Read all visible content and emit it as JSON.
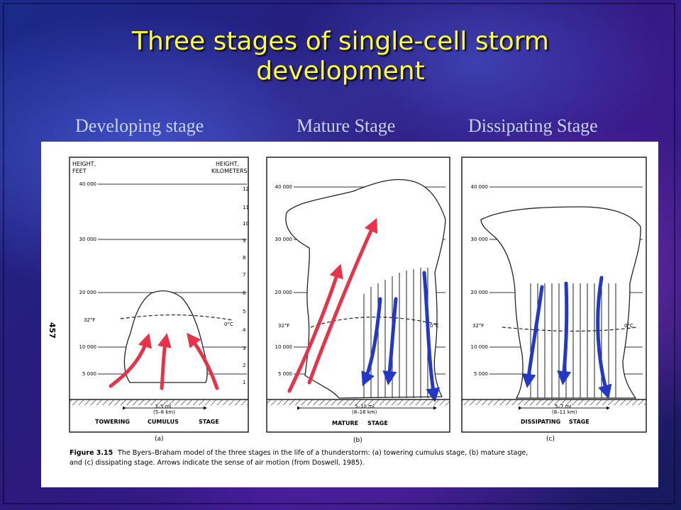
{
  "slide": {
    "title_line1": "Three stages of single-cell storm",
    "title_line2": "development",
    "stage_labels": [
      "Developing stage",
      "Mature Stage",
      "Dissipating Stage"
    ]
  },
  "figure": {
    "page_number": "457",
    "caption_label": "Figure 3.15",
    "caption_line1": "The Byers–Braham model of the three stages in the life of a thunderstorm: (a) towering cumulus stage, (b) mature stage,",
    "caption_line2": "and (c) dissipating stage. Arrows indicate the sense of air motion (from Doswell, 1985).",
    "axis_left_title": [
      "HEIGHT,",
      "FEET"
    ],
    "axis_right_title": [
      "HEIGHT,",
      "KILOMETERS"
    ],
    "feet_ticks": [
      "40 000",
      "30 000",
      "20 000",
      "10 000",
      "5 000"
    ],
    "km_ticks": [
      "12",
      "11",
      "10",
      "9",
      "8",
      "7",
      "6",
      "5",
      "4",
      "3",
      "2",
      "1"
    ],
    "freezing_left": "32°F",
    "freezing_right": "0°C",
    "panels": [
      {
        "id": "a",
        "letter": "(a)",
        "width_mi": "3–5 mi",
        "width_km": "(5–8 km)",
        "stage_words": [
          "TOWERING",
          "CUMULUS",
          "STAGE"
        ]
      },
      {
        "id": "b",
        "letter": "(b)",
        "width_mi": "5–10 mi",
        "width_km": "(8–16 km)",
        "stage_words": [
          "MATURE",
          "STAGE"
        ]
      },
      {
        "id": "c",
        "letter": "(c)",
        "width_mi": "5–7 mi",
        "width_km": "(8–11 km)",
        "stage_words": [
          "DISSIPATING",
          "STAGE"
        ]
      }
    ],
    "colors": {
      "updraft": "#e8324a",
      "downdraft": "#2438c8"
    }
  }
}
